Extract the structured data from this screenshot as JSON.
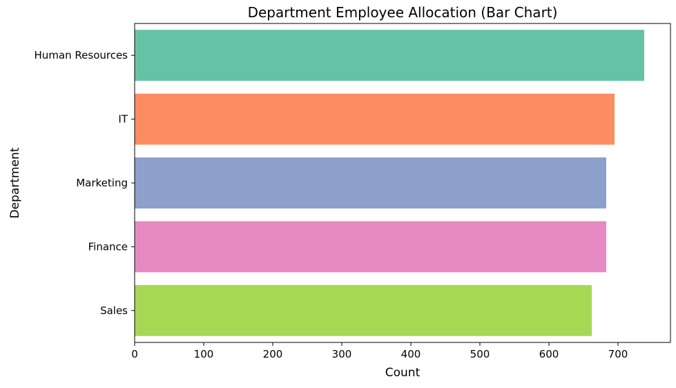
{
  "chart_data": {
    "type": "bar",
    "orientation": "horizontal",
    "title": "Department Employee Allocation (Bar Chart)",
    "xlabel": "Count",
    "ylabel": "Department",
    "categories": [
      "Human Resources",
      "IT",
      "Marketing",
      "Finance",
      "Sales"
    ],
    "values": [
      738,
      695,
      683,
      683,
      662
    ],
    "colors": [
      "#66c2a5",
      "#fc8d62",
      "#8da0cb",
      "#e78ac3",
      "#a6d854"
    ],
    "xlim": [
      0,
      776
    ],
    "xticks": [
      0,
      100,
      200,
      300,
      400,
      500,
      600,
      700
    ],
    "grid": false,
    "legend": "none"
  }
}
